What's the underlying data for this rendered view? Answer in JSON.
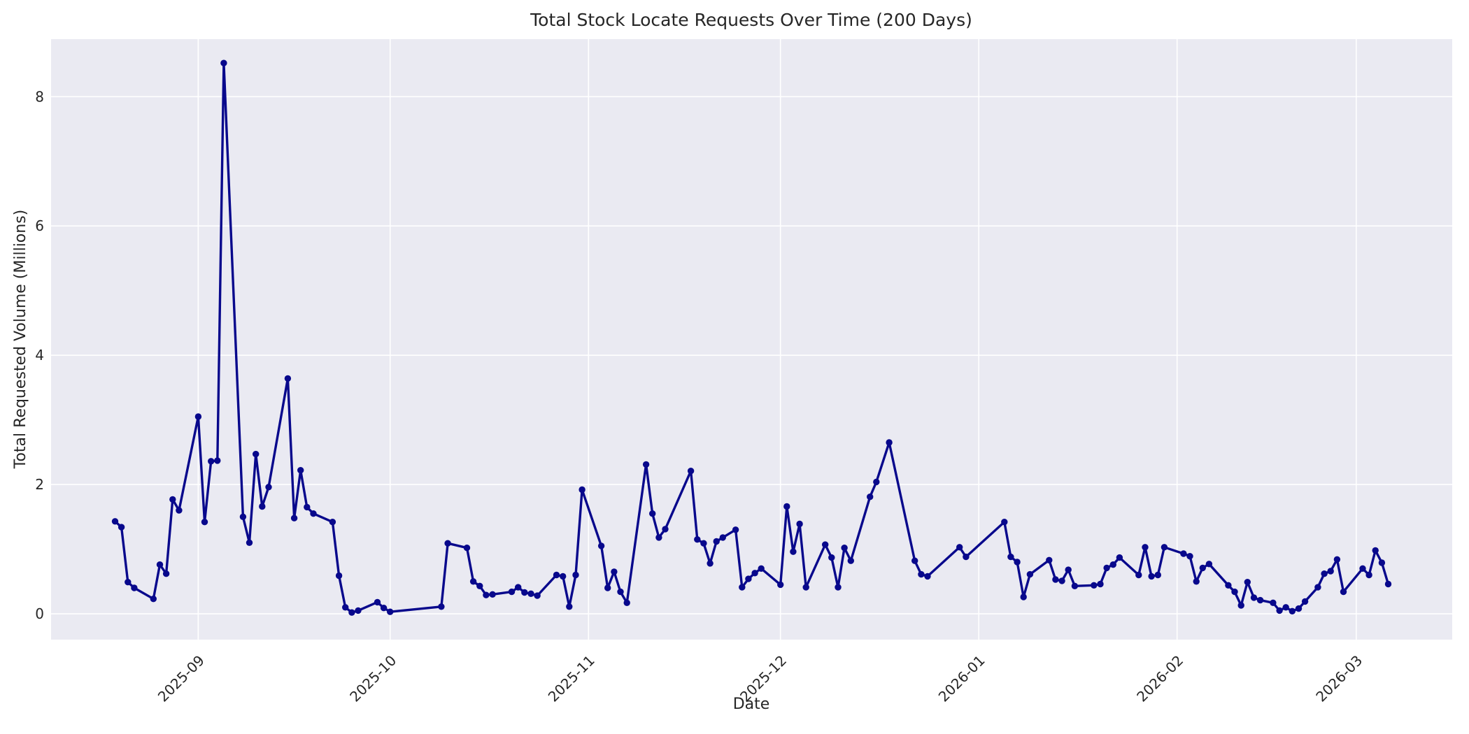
{
  "chart_data": {
    "type": "line",
    "title": "Total Stock Locate Requests Over Time (200 Days)",
    "xlabel": "Date",
    "ylabel": "Total Requested Volume (Millions)",
    "legend": "none",
    "grid": true,
    "x_axis": {
      "start": "2025-08-09",
      "end": "2026-03-16"
    },
    "ylim": [
      -0.4,
      8.89
    ],
    "y_ticks": [
      0,
      2,
      4,
      6,
      8
    ],
    "x_ticks": [
      {
        "label": "2025-09",
        "date": "2025-09-01"
      },
      {
        "label": "2025-10",
        "date": "2025-10-01"
      },
      {
        "label": "2025-11",
        "date": "2025-11-01"
      },
      {
        "label": "2025-12",
        "date": "2025-12-01"
      },
      {
        "label": "2026-01",
        "date": "2026-01-01"
      },
      {
        "label": "2026-02",
        "date": "2026-02-01"
      },
      {
        "label": "2026-03",
        "date": "2026-03-01"
      }
    ],
    "style": {
      "line_color": "#08088c",
      "marker_color": "#08088c",
      "plot_bg": "#eaeaf2",
      "grid_color": "#ffffff",
      "fig_bg": "#ffffff",
      "text_color": "#262626"
    },
    "series": [
      {
        "name": "Total Stock Locate Requests",
        "points": [
          [
            "2025-08-19",
            1.43
          ],
          [
            "2025-08-20",
            1.34
          ],
          [
            "2025-08-21",
            0.49
          ],
          [
            "2025-08-22",
            0.4
          ],
          [
            "2025-08-25",
            0.23
          ],
          [
            "2025-08-26",
            0.76
          ],
          [
            "2025-08-27",
            0.62
          ],
          [
            "2025-08-28",
            1.77
          ],
          [
            "2025-08-29",
            1.6
          ],
          [
            "2025-09-01",
            3.05
          ],
          [
            "2025-09-02",
            1.42
          ],
          [
            "2025-09-03",
            2.36
          ],
          [
            "2025-09-04",
            2.37
          ],
          [
            "2025-09-05",
            8.52
          ],
          [
            "2025-09-08",
            1.5
          ],
          [
            "2025-09-09",
            1.1
          ],
          [
            "2025-09-10",
            2.47
          ],
          [
            "2025-09-11",
            1.66
          ],
          [
            "2025-09-12",
            1.96
          ],
          [
            "2025-09-15",
            3.64
          ],
          [
            "2025-09-16",
            1.48
          ],
          [
            "2025-09-17",
            2.22
          ],
          [
            "2025-09-18",
            1.65
          ],
          [
            "2025-09-19",
            1.55
          ],
          [
            "2025-09-22",
            1.42
          ],
          [
            "2025-09-23",
            0.59
          ],
          [
            "2025-09-24",
            0.1
          ],
          [
            "2025-09-25",
            0.02
          ],
          [
            "2025-09-26",
            0.05
          ],
          [
            "2025-09-29",
            0.18
          ],
          [
            "2025-09-30",
            0.09
          ],
          [
            "2025-10-01",
            0.03
          ],
          [
            "2025-10-09",
            0.11
          ],
          [
            "2025-10-10",
            1.09
          ],
          [
            "2025-10-13",
            1.02
          ],
          [
            "2025-10-14",
            0.5
          ],
          [
            "2025-10-15",
            0.43
          ],
          [
            "2025-10-16",
            0.29
          ],
          [
            "2025-10-17",
            0.3
          ],
          [
            "2025-10-20",
            0.34
          ],
          [
            "2025-10-21",
            0.41
          ],
          [
            "2025-10-22",
            0.33
          ],
          [
            "2025-10-23",
            0.31
          ],
          [
            "2025-10-24",
            0.28
          ],
          [
            "2025-10-27",
            0.6
          ],
          [
            "2025-10-28",
            0.58
          ],
          [
            "2025-10-29",
            0.11
          ],
          [
            "2025-10-30",
            0.6
          ],
          [
            "2025-10-31",
            1.92
          ],
          [
            "2025-11-03",
            1.05
          ],
          [
            "2025-11-04",
            0.4
          ],
          [
            "2025-11-05",
            0.65
          ],
          [
            "2025-11-06",
            0.34
          ],
          [
            "2025-11-07",
            0.17
          ],
          [
            "2025-11-10",
            2.31
          ],
          [
            "2025-11-11",
            1.55
          ],
          [
            "2025-11-12",
            1.18
          ],
          [
            "2025-11-13",
            1.31
          ],
          [
            "2025-11-17",
            2.21
          ],
          [
            "2025-11-18",
            1.15
          ],
          [
            "2025-11-19",
            1.09
          ],
          [
            "2025-11-20",
            0.78
          ],
          [
            "2025-11-21",
            1.12
          ],
          [
            "2025-11-22",
            1.18
          ],
          [
            "2025-11-24",
            1.3
          ],
          [
            "2025-11-25",
            0.41
          ],
          [
            "2025-11-26",
            0.54
          ],
          [
            "2025-11-27",
            0.63
          ],
          [
            "2025-11-28",
            0.7
          ],
          [
            "2025-12-01",
            0.45
          ],
          [
            "2025-12-02",
            1.66
          ],
          [
            "2025-12-03",
            0.96
          ],
          [
            "2025-12-04",
            1.39
          ],
          [
            "2025-12-05",
            0.41
          ],
          [
            "2025-12-08",
            1.07
          ],
          [
            "2025-12-09",
            0.87
          ],
          [
            "2025-12-10",
            0.41
          ],
          [
            "2025-12-11",
            1.02
          ],
          [
            "2025-12-12",
            0.82
          ],
          [
            "2025-12-15",
            1.81
          ],
          [
            "2025-12-16",
            2.04
          ],
          [
            "2025-12-18",
            2.65
          ],
          [
            "2025-12-22",
            0.82
          ],
          [
            "2025-12-23",
            0.61
          ],
          [
            "2025-12-24",
            0.58
          ],
          [
            "2025-12-29",
            1.03
          ],
          [
            "2025-12-30",
            0.88
          ],
          [
            "2026-01-05",
            1.42
          ],
          [
            "2026-01-06",
            0.88
          ],
          [
            "2026-01-07",
            0.8
          ],
          [
            "2026-01-08",
            0.26
          ],
          [
            "2026-01-09",
            0.61
          ],
          [
            "2026-01-12",
            0.83
          ],
          [
            "2026-01-13",
            0.53
          ],
          [
            "2026-01-14",
            0.51
          ],
          [
            "2026-01-15",
            0.68
          ],
          [
            "2026-01-16",
            0.43
          ],
          [
            "2026-01-19",
            0.44
          ],
          [
            "2026-01-20",
            0.46
          ],
          [
            "2026-01-21",
            0.71
          ],
          [
            "2026-01-22",
            0.76
          ],
          [
            "2026-01-23",
            0.87
          ],
          [
            "2026-01-26",
            0.6
          ],
          [
            "2026-01-27",
            1.03
          ],
          [
            "2026-01-28",
            0.58
          ],
          [
            "2026-01-29",
            0.6
          ],
          [
            "2026-01-30",
            1.03
          ],
          [
            "2026-02-02",
            0.93
          ],
          [
            "2026-02-03",
            0.89
          ],
          [
            "2026-02-04",
            0.5
          ],
          [
            "2026-02-05",
            0.71
          ],
          [
            "2026-02-06",
            0.77
          ],
          [
            "2026-02-09",
            0.44
          ],
          [
            "2026-02-10",
            0.34
          ],
          [
            "2026-02-11",
            0.13
          ],
          [
            "2026-02-12",
            0.49
          ],
          [
            "2026-02-13",
            0.25
          ],
          [
            "2026-02-14",
            0.21
          ],
          [
            "2026-02-16",
            0.17
          ],
          [
            "2026-02-17",
            0.05
          ],
          [
            "2026-02-18",
            0.1
          ],
          [
            "2026-02-19",
            0.04
          ],
          [
            "2026-02-20",
            0.08
          ],
          [
            "2026-02-21",
            0.19
          ],
          [
            "2026-02-23",
            0.41
          ],
          [
            "2026-02-24",
            0.62
          ],
          [
            "2026-02-25",
            0.66
          ],
          [
            "2026-02-26",
            0.84
          ],
          [
            "2026-02-27",
            0.34
          ],
          [
            "2026-03-02",
            0.7
          ],
          [
            "2026-03-03",
            0.6
          ],
          [
            "2026-03-04",
            0.98
          ],
          [
            "2026-03-05",
            0.79
          ],
          [
            "2026-03-06",
            0.46
          ]
        ]
      }
    ]
  }
}
